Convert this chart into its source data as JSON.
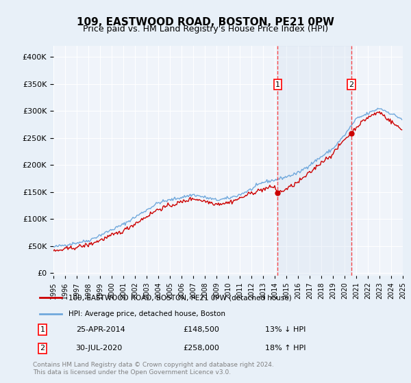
{
  "title": "109, EASTWOOD ROAD, BOSTON, PE21 0PW",
  "subtitle": "Price paid vs. HM Land Registry's House Price Index (HPI)",
  "hpi_color": "#6fa8dc",
  "price_color": "#cc0000",
  "marker1_date_idx": 230,
  "marker2_date_idx": 306,
  "marker1_label": "1",
  "marker2_label": "2",
  "marker1_price": 148500,
  "marker2_price": 258000,
  "marker1_date": "25-APR-2014",
  "marker2_date": "30-JUL-2020",
  "marker1_pct": "13% ↓ HPI",
  "marker2_pct": "18% ↑ HPI",
  "legend_line1": "109, EASTWOOD ROAD, BOSTON, PE21 0PW (detached house)",
  "legend_line2": "HPI: Average price, detached house, Boston",
  "footnote": "Contains HM Land Registry data © Crown copyright and database right 2024.\nThis data is licensed under the Open Government Licence v3.0.",
  "ylabel_ticks": [
    "£0",
    "£50K",
    "£100K",
    "£150K",
    "£200K",
    "£250K",
    "£300K",
    "£350K",
    "£400K"
  ],
  "ylabel_values": [
    0,
    50000,
    100000,
    150000,
    200000,
    250000,
    300000,
    350000,
    400000
  ],
  "ymax": 420000,
  "ymin": -5000,
  "bg_color": "#e8f0f8",
  "plot_bg": "#f0f4fa",
  "grid_color": "#ffffff",
  "shade_color": "#d0e0f0"
}
